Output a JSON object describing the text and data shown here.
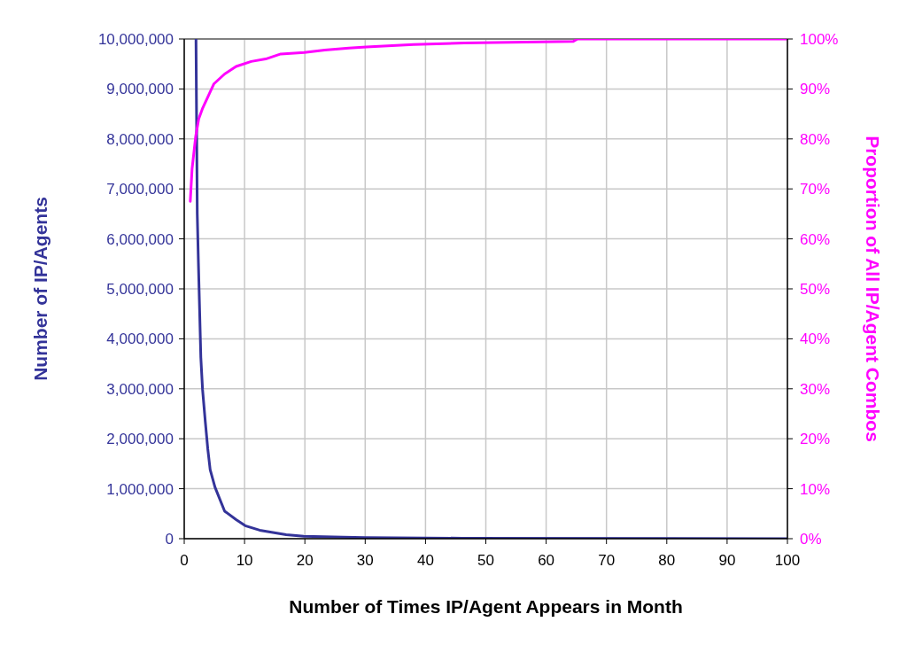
{
  "chart_data": {
    "type": "line",
    "xlabel": "Number of Times IP/Agent Appears in Month",
    "ylabel": "Number of IP/Agents",
    "y2label": "Proportion of All IP/Agent Combos",
    "xlim": [
      0,
      100
    ],
    "xticks": [
      0,
      10,
      20,
      30,
      40,
      50,
      60,
      70,
      80,
      90,
      100
    ],
    "ylim": [
      0,
      10000000
    ],
    "yticks": [
      {
        "value": 0,
        "label": "0"
      },
      {
        "value": 1000000,
        "label": "1,000,000"
      },
      {
        "value": 2000000,
        "label": "2,000,000"
      },
      {
        "value": 3000000,
        "label": "3,000,000"
      },
      {
        "value": 4000000,
        "label": "4,000,000"
      },
      {
        "value": 5000000,
        "label": "5,000,000"
      },
      {
        "value": 6000000,
        "label": "6,000,000"
      },
      {
        "value": 7000000,
        "label": "7,000,000"
      },
      {
        "value": 8000000,
        "label": "8,000,000"
      },
      {
        "value": 9000000,
        "label": "9,000,000"
      },
      {
        "value": 10000000,
        "label": "10,000,000"
      }
    ],
    "y2lim": [
      0,
      100
    ],
    "y2ticks": [
      {
        "value": 0,
        "label": "0%"
      },
      {
        "value": 10,
        "label": "10%"
      },
      {
        "value": 20,
        "label": "20%"
      },
      {
        "value": 30,
        "label": "30%"
      },
      {
        "value": 40,
        "label": "40%"
      },
      {
        "value": 50,
        "label": "50%"
      },
      {
        "value": 60,
        "label": "60%"
      },
      {
        "value": 70,
        "label": "70%"
      },
      {
        "value": 80,
        "label": "80%"
      },
      {
        "value": 90,
        "label": "90%"
      },
      {
        "value": 100,
        "label": "100%"
      }
    ],
    "grid": true,
    "series": [
      {
        "color": "#333399",
        "x": [
          1.95,
          2.16,
          2.35,
          2.55,
          2.75,
          3.04,
          3.5,
          3.9,
          4.3,
          5.1,
          6.7,
          8.6,
          10.1,
          12.5,
          16.9,
          19.8,
          26.3,
          30,
          46,
          100
        ],
        "values": [
          10000000,
          6500000,
          5520000,
          4570000,
          3630000,
          2980000,
          2330000,
          1800000,
          1380000,
          1030000,
          550000,
          380000,
          260000,
          170000,
          80000,
          50000,
          30000,
          20000,
          10000,
          0
        ]
      },
      {
        "color": "#ff00ff",
        "axis": "y2",
        "x": [
          1,
          1.3,
          1.9,
          2.4,
          3,
          4.9,
          6.7,
          8.6,
          11.1,
          13.5,
          16,
          19.9,
          23.3,
          27.3,
          30.2,
          38,
          46.4,
          64.5,
          65.2,
          100
        ],
        "values": [
          67.5,
          74,
          80.5,
          84,
          86,
          91,
          93,
          94.5,
          95.5,
          96,
          97,
          97.3,
          97.8,
          98.2,
          98.4,
          98.9,
          99.2,
          99.5,
          100,
          100
        ]
      }
    ]
  }
}
